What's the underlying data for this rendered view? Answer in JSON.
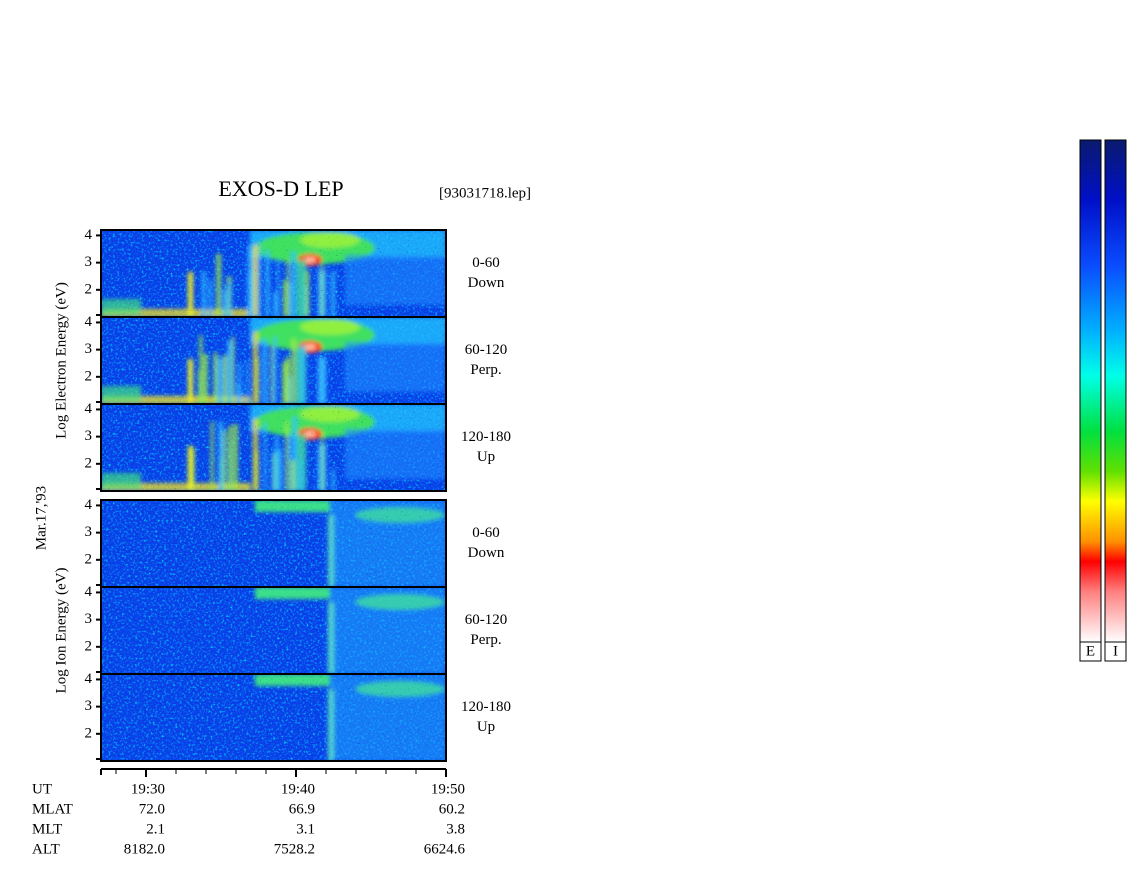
{
  "chart_data": {
    "type": "spectrogram",
    "title": "EXOS-D LEP",
    "file": "[93031718.lep]",
    "date_label": "Mar.17,'93",
    "ylim": [
      1,
      4.2
    ],
    "yticks": [
      2,
      3,
      4
    ],
    "xlim": [
      27,
      50
    ],
    "xticks": [
      {
        "value": 30,
        "label": "19:30"
      },
      {
        "value": 40,
        "label": "19:40"
      },
      {
        "value": 50,
        "label": "19:50"
      }
    ],
    "xticks_minor": [
      28,
      32,
      34,
      36,
      38,
      42,
      44,
      46,
      48
    ],
    "groups": [
      {
        "axis_label": "Log Electron Energy (eV)",
        "species": "electron",
        "panels": [
          {
            "angle": "0-60",
            "direction": "Down"
          },
          {
            "angle": "60-120",
            "direction": "Perp."
          },
          {
            "angle": "120-180",
            "direction": "Up"
          }
        ]
      },
      {
        "axis_label": "Log Ion Energy (eV)",
        "species": "ion",
        "panels": [
          {
            "angle": "0-60",
            "direction": "Down"
          },
          {
            "angle": "60-120",
            "direction": "Perp."
          },
          {
            "angle": "120-180",
            "direction": "Up"
          }
        ]
      }
    ],
    "ephemeris": {
      "ut_label": "UT",
      "rows": [
        {
          "name": "MLAT",
          "values": [
            "72.0",
            "66.9",
            "60.2"
          ]
        },
        {
          "name": "MLT",
          "values": [
            "2.1",
            "3.1",
            "3.8"
          ]
        },
        {
          "name": "ALT",
          "values": [
            "8182.0",
            "7528.2",
            "6624.6"
          ]
        }
      ]
    },
    "colorbars": [
      "E",
      "I"
    ]
  }
}
